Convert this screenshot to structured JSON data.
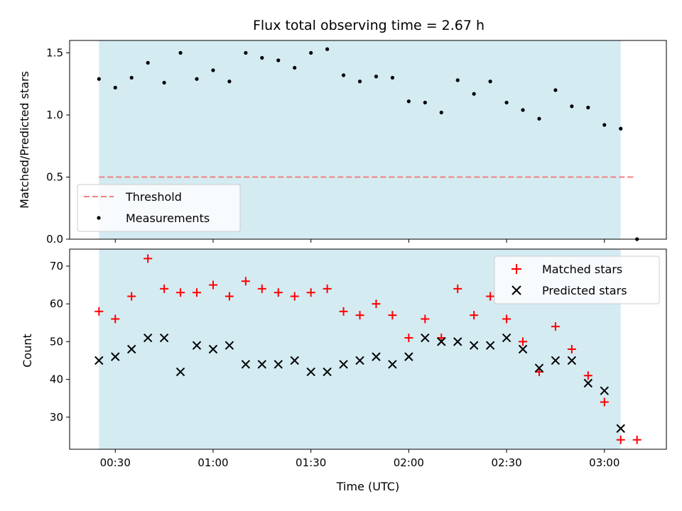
{
  "chart_data": {
    "title": "Flux total observing time = 2.67 h",
    "xlabel": "Time (UTC)",
    "x_ticks": [
      "00:30",
      "01:00",
      "01:30",
      "02:00",
      "02:30",
      "03:00"
    ],
    "x_tick_minutes": [
      30,
      60,
      90,
      120,
      150,
      180
    ],
    "xlim_minutes": [
      16,
      199
    ],
    "shaded_span_minutes": [
      25,
      185
    ],
    "shaded_color": "#d4ebf2",
    "time_minutes": [
      25,
      30,
      35,
      40,
      45,
      50,
      55,
      60,
      65,
      70,
      75,
      80,
      85,
      90,
      95,
      100,
      105,
      110,
      115,
      120,
      125,
      130,
      135,
      140,
      145,
      150,
      155,
      160,
      165,
      170,
      175,
      180,
      185,
      190
    ],
    "panels": [
      {
        "type": "scatter",
        "ylabel": "Matched/Predicted stars",
        "ylim": [
          0,
          1.6
        ],
        "y_ticks": [
          "0.0",
          "0.5",
          "1.0",
          "1.5"
        ],
        "y_tick_values": [
          0,
          0.5,
          1.0,
          1.5
        ],
        "legend_position": "lower-left",
        "threshold": {
          "name": "Threshold",
          "value": 0.5,
          "x_range_minutes": [
            25,
            189
          ],
          "color": "#f08080"
        },
        "series": [
          {
            "name": "Measurements",
            "marker": "dot",
            "color": "#000000",
            "values": [
              1.29,
              1.22,
              1.3,
              1.42,
              1.26,
              1.5,
              1.29,
              1.36,
              1.27,
              1.5,
              1.46,
              1.44,
              1.38,
              1.5,
              1.53,
              1.32,
              1.27,
              1.31,
              1.3,
              1.11,
              1.1,
              1.02,
              1.28,
              1.17,
              1.27,
              1.1,
              1.04,
              0.97,
              1.2,
              1.07,
              1.06,
              0.92,
              0.89,
              0.0
            ]
          }
        ]
      },
      {
        "type": "scatter",
        "ylabel": "Count",
        "ylim": [
          21.5,
          74.5
        ],
        "y_ticks": [
          "30",
          "40",
          "50",
          "60",
          "70"
        ],
        "y_tick_values": [
          30,
          40,
          50,
          60,
          70
        ],
        "legend_position": "upper-right",
        "series": [
          {
            "name": "Matched stars",
            "marker": "plus",
            "color": "#ff0000",
            "values": [
              58,
              56,
              62,
              72,
              64,
              63,
              63,
              65,
              62,
              66,
              64,
              63,
              62,
              63,
              64,
              58,
              57,
              60,
              57,
              51,
              56,
              51,
              64,
              57,
              62,
              56,
              50,
              42,
              54,
              48,
              41,
              34,
              24,
              24
            ]
          },
          {
            "name": "Predicted stars",
            "marker": "x",
            "color": "#000000",
            "values": [
              45,
              46,
              48,
              51,
              51,
              42,
              49,
              48,
              49,
              44,
              44,
              44,
              45,
              42,
              42,
              44,
              45,
              46,
              44,
              46,
              51,
              50,
              50,
              49,
              49,
              51,
              48,
              43,
              45,
              45,
              39,
              37,
              27,
              null
            ]
          }
        ]
      }
    ]
  }
}
